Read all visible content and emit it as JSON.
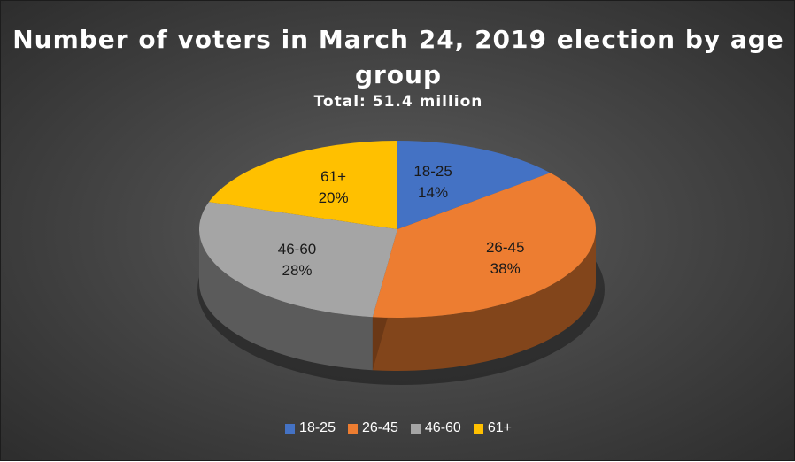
{
  "chart_data": {
    "type": "pie",
    "title": "Number of voters in March 24, 2019 election by age group",
    "subtitle": "Total: 51.4 million",
    "categories": [
      "18-25",
      "26-45",
      "46-60",
      "61+"
    ],
    "values": [
      14,
      38,
      28,
      20
    ],
    "value_labels": [
      "14%",
      "38%",
      "28%",
      "20%"
    ],
    "colors": [
      "#4472C4",
      "#ED7D31",
      "#A5A5A5",
      "#FFC000"
    ],
    "legend_position": "bottom",
    "style": "3d"
  }
}
